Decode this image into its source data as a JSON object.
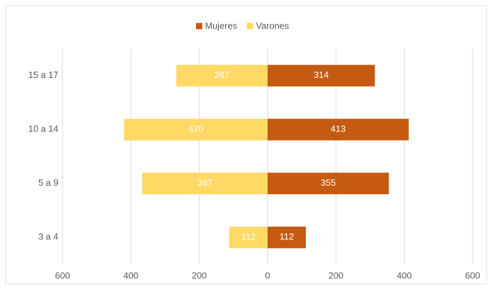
{
  "chart_data": {
    "type": "bar",
    "orientation": "horizontal",
    "stacked": true,
    "categories": [
      "15 a 17",
      "10 a 14",
      "5 a 9",
      "3 a 4"
    ],
    "series": [
      {
        "name": "Mujeres",
        "color": "#c55a11",
        "values": [
          314,
          413,
          355,
          112
        ]
      },
      {
        "name": "Varones",
        "color": "#ffd966",
        "values": [
          -267,
          -420,
          -367,
          -112
        ],
        "value_labels": [
          "267",
          "420",
          "367",
          "112"
        ]
      }
    ],
    "xlim": [
      -600,
      600
    ],
    "xticks": [
      {
        "value": -600,
        "label": "600"
      },
      {
        "value": -400,
        "label": "400"
      },
      {
        "value": -200,
        "label": "200"
      },
      0,
      200,
      400,
      600
    ],
    "grid": true,
    "legend": "top"
  }
}
